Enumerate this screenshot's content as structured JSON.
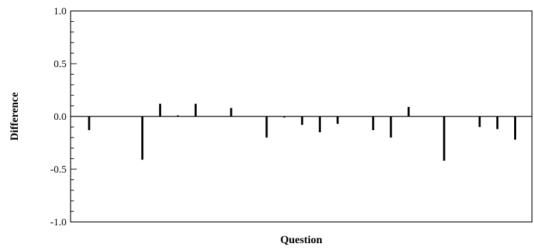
{
  "chart_data": {
    "type": "bar",
    "title": "",
    "xlabel": "Question",
    "ylabel": "Difference",
    "ylim": [
      -1.0,
      1.0
    ],
    "yticks": [
      "1.0",
      "0.5",
      "0.0",
      "-0.5",
      "-1.0"
    ],
    "ytick_values": [
      1.0,
      0.5,
      0.0,
      -0.5,
      -1.0
    ],
    "minor_ytick_step": 0.1,
    "grid": false,
    "zero_line": true,
    "bar_color": "#000000",
    "values": [
      -0.13,
      0,
      0,
      -0.41,
      0.12,
      0.01,
      0.12,
      0,
      0.08,
      0,
      -0.2,
      -0.01,
      -0.08,
      -0.15,
      -0.07,
      0,
      -0.13,
      -0.2,
      0.09,
      0,
      -0.42,
      0,
      -0.1,
      -0.12,
      -0.22
    ]
  }
}
